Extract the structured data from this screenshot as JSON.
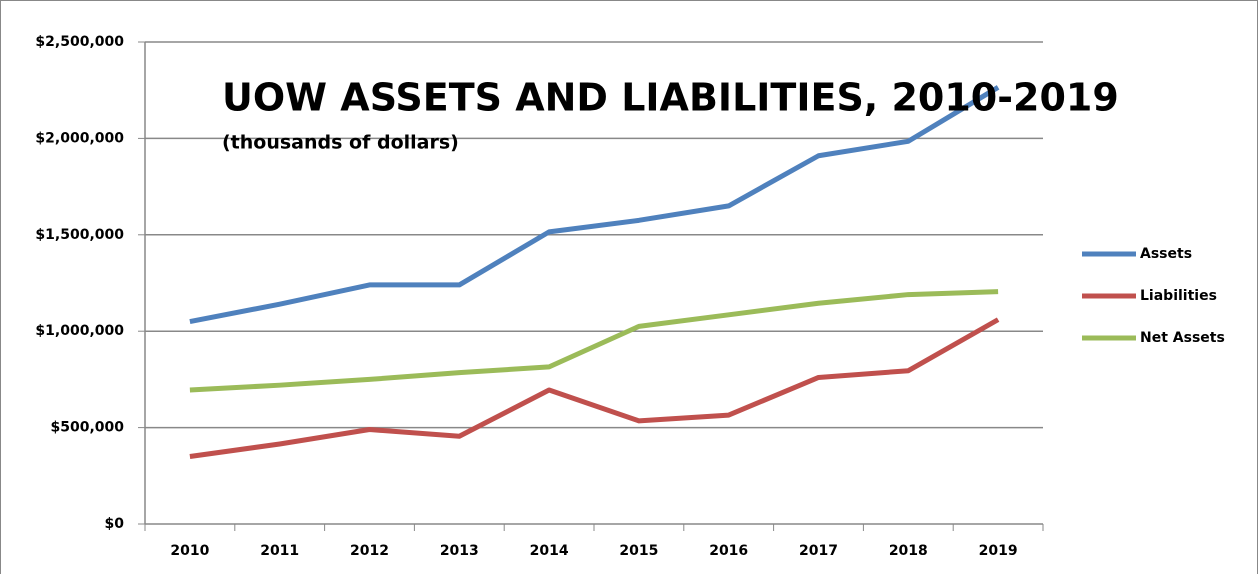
{
  "chart_data": {
    "type": "line",
    "title": "UOW ASSETS AND LIABILITIES, 2010-2019",
    "subtitle": "(thousands of dollars)",
    "categories": [
      "2010",
      "2011",
      "2012",
      "2013",
      "2014",
      "2015",
      "2016",
      "2017",
      "2018",
      "2019"
    ],
    "series": [
      {
        "name": "Assets",
        "color": "#4f81bd",
        "values": [
          1050000,
          1140000,
          1240000,
          1240000,
          1515000,
          1575000,
          1650000,
          1910000,
          1985000,
          2265000
        ]
      },
      {
        "name": "Liabilities",
        "color": "#c0504d",
        "values": [
          350000,
          415000,
          490000,
          455000,
          695000,
          535000,
          565000,
          760000,
          795000,
          1060000
        ]
      },
      {
        "name": "Net Assets",
        "color": "#9bbb59",
        "values": [
          695000,
          720000,
          750000,
          785000,
          815000,
          1025000,
          1085000,
          1145000,
          1190000,
          1205000
        ]
      }
    ],
    "ylim": [
      0,
      2500000
    ],
    "yticks": [
      {
        "value": 0,
        "label": "$0"
      },
      {
        "value": 500000,
        "label": "$500,000"
      },
      {
        "value": 1000000,
        "label": "$1,000,000"
      },
      {
        "value": 1500000,
        "label": "$1,500,000"
      },
      {
        "value": 2000000,
        "label": "$2,000,000"
      },
      {
        "value": 2500000,
        "label": "$2,500,000"
      }
    ],
    "grid": true,
    "legend": "right"
  }
}
